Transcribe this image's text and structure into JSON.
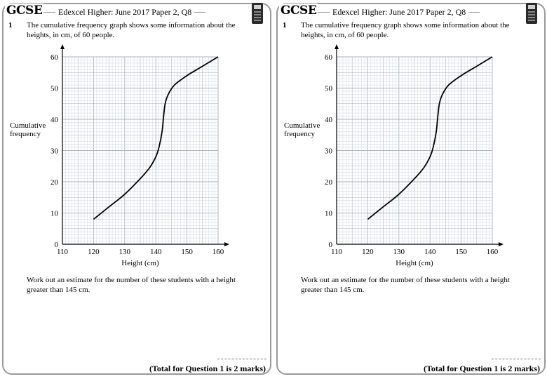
{
  "header": {
    "badge": "GCSE",
    "source": "Edexcel Higher: June 2017 Paper 2, Q8",
    "calculator_icon": "calculator-icon"
  },
  "question": {
    "number": "1",
    "text": "The cumulative frequency graph shows some information about the heights, in cm, of 60 people.",
    "task": "Work out an estimate for the number of these students with a height greater than 145 cm.",
    "total": "(Total for Question 1 is 2 marks)"
  },
  "chart_data": {
    "type": "line",
    "title": "",
    "xlabel": "Height (cm)",
    "ylabel": "Cumulative frequency",
    "xlim": [
      110,
      160
    ],
    "ylim": [
      0,
      60
    ],
    "x_ticks": [
      110,
      120,
      130,
      140,
      150,
      160
    ],
    "y_ticks": [
      0,
      10,
      20,
      30,
      40,
      50,
      60
    ],
    "grid": true,
    "series": [
      {
        "name": "Cumulative frequency",
        "x": [
          120,
          125,
          130,
          135,
          138,
          140,
          141,
          142,
          142.5,
          143,
          144,
          146,
          150,
          155,
          160
        ],
        "y": [
          8,
          12,
          16,
          21,
          24.5,
          28,
          31,
          36,
          41,
          45,
          48,
          51,
          54,
          57,
          60
        ]
      }
    ]
  },
  "colors": {
    "panel_border": "#9a9a9a",
    "grid_major": "#a9b3bb",
    "grid_minor": "#d3dce2"
  }
}
